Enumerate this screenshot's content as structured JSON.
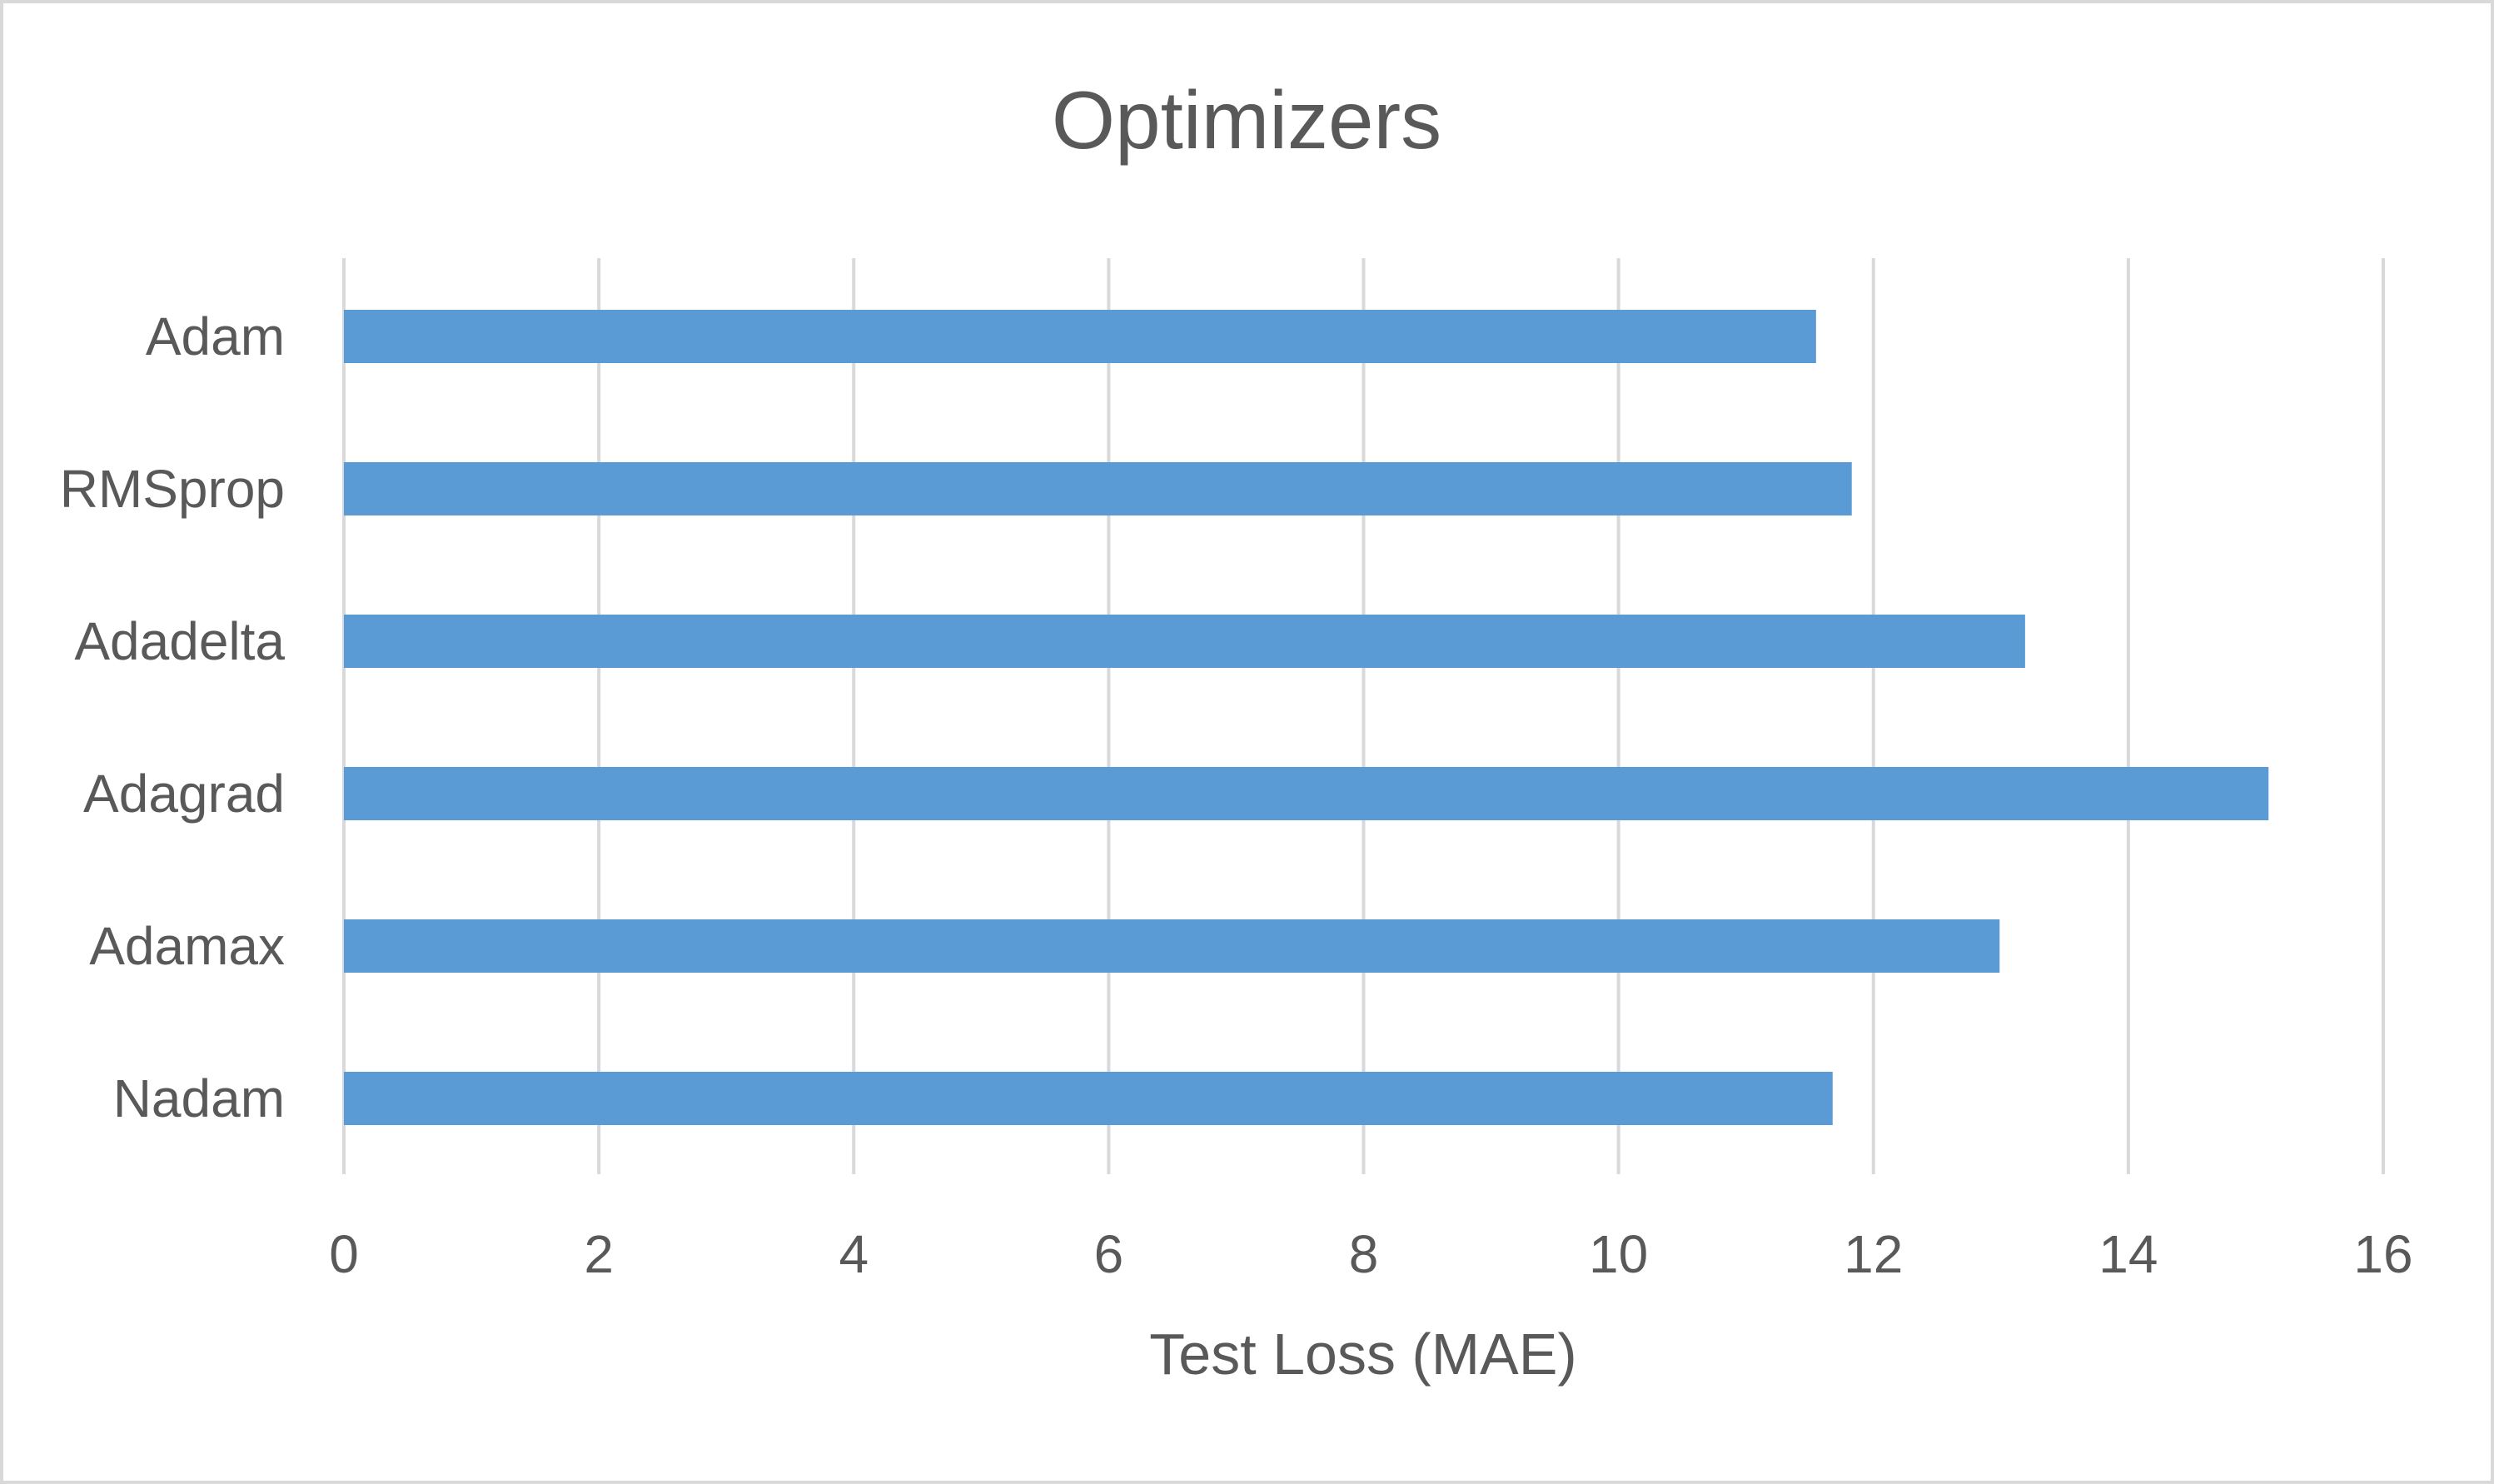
{
  "chart_data": {
    "type": "bar",
    "orientation": "horizontal",
    "title": "Optimizers",
    "xlabel": "Test Loss (MAE)",
    "ylabel": "",
    "categories": [
      "Adam",
      "RMSprop",
      "Adadelta",
      "Adagrad",
      "Adamax",
      "Nadam"
    ],
    "values": [
      11.55,
      11.83,
      13.19,
      15.1,
      12.99,
      11.68
    ],
    "xlim": [
      0,
      16
    ],
    "xticks": [
      "0",
      "2",
      "4",
      "6",
      "8",
      "10",
      "12",
      "14",
      "16"
    ],
    "grid": true,
    "legend": "none",
    "colors": {
      "bar": "#5b9bd5",
      "grid": "#d9d9d9",
      "text": "#595959",
      "border": "#d9d9d9"
    }
  }
}
